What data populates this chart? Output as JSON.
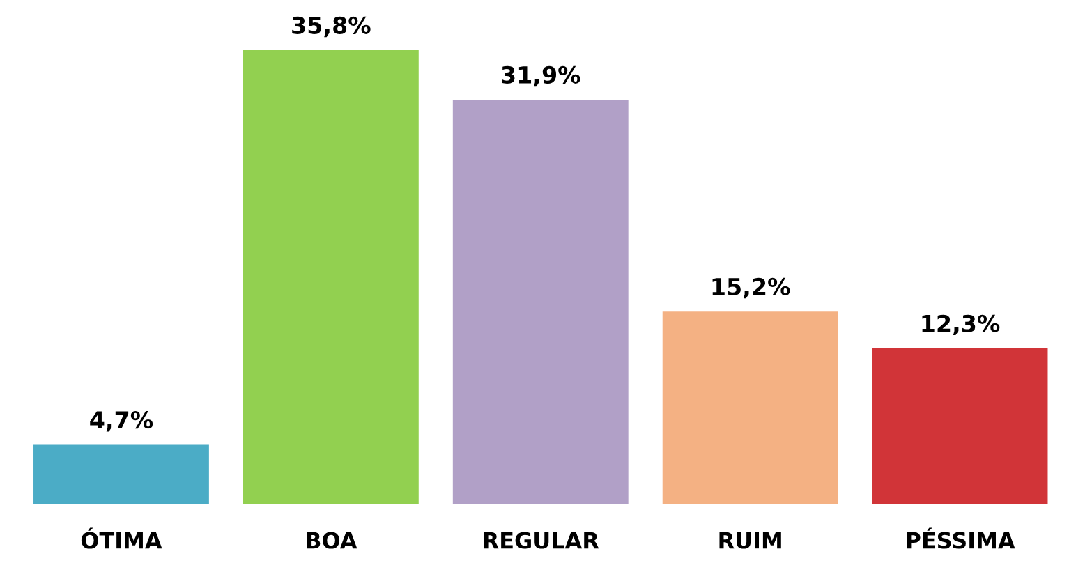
{
  "chart_data": {
    "type": "bar",
    "categories": [
      "ÓTIMA",
      "BOA",
      "REGULAR",
      "RUIM",
      "PÉSSIMA"
    ],
    "values": [
      4.7,
      35.8,
      31.9,
      15.2,
      12.3
    ],
    "colors": [
      "#4bacc6",
      "#92d050",
      "#b1a0c7",
      "#f4b183",
      "#d13438"
    ],
    "value_labels": [
      "4,7%",
      "35,8%",
      "31,9%",
      "15,2%",
      "12,3%"
    ],
    "grid": false,
    "legend": false
  }
}
